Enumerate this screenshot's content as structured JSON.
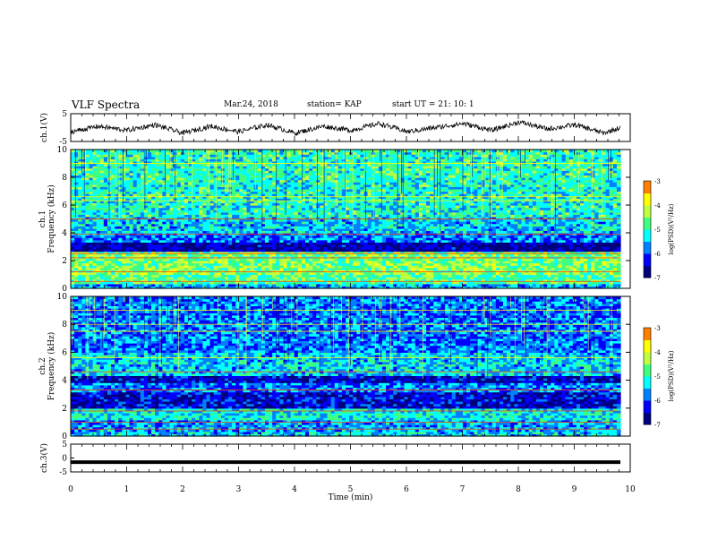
{
  "header": {
    "title": "VLF Spectra",
    "date": "Mar.24, 2018",
    "station": "station= KAP",
    "start": "start  UT  =   21: 10: 1"
  },
  "colors": {
    "colormap": [
      "#00007f",
      "#0000ff",
      "#0080ff",
      "#00ffff",
      "#40ff80",
      "#c0ff40",
      "#ffff00",
      "#ff8000",
      "#ff0000",
      "#ffffff"
    ],
    "trace": "#000000"
  },
  "chart_data": [
    {
      "type": "line",
      "ylabel": "ch.1(V)",
      "ylim": [
        -5,
        5
      ],
      "yticks": [
        "5",
        "-5"
      ],
      "xlim": [
        0,
        9.8
      ],
      "description_values": {
        "x": [
          0,
          0.5,
          1,
          1.5,
          2,
          2.5,
          3,
          3.5,
          4,
          4.5,
          5,
          5.5,
          6,
          6.5,
          7,
          7.5,
          8,
          8.5,
          9,
          9.5,
          9.8
        ],
        "y": [
          -1.5,
          0.5,
          -1,
          1,
          -2,
          0.5,
          -1.5,
          1,
          -2,
          0.5,
          -1,
          1.5,
          -1.5,
          0,
          1.5,
          -1,
          2,
          -0.5,
          1,
          -2,
          0
        ]
      }
    },
    {
      "type": "heatmap",
      "ylabel": "ch.1",
      "ylabel2": "Frequency (kHz)",
      "ylim": [
        0,
        10
      ],
      "yticks": [
        "0",
        "2",
        "4",
        "6",
        "8",
        "10"
      ],
      "xlim": [
        0,
        10
      ],
      "colorbar": {
        "label": "log(PSD)(V²/Hz)",
        "ticks": [
          "-3",
          "-4",
          "-5",
          "-6",
          "-7"
        ],
        "range": [
          -7,
          -3
        ]
      },
      "bands_khz": [
        {
          "f0": 0,
          "f1": 0.3,
          "level": 0.35
        },
        {
          "f0": 0.3,
          "f1": 1.0,
          "level": 0.55
        },
        {
          "f0": 1.0,
          "f1": 2.0,
          "level": 0.62
        },
        {
          "f0": 2.0,
          "f1": 2.6,
          "level": 0.6
        },
        {
          "f0": 2.6,
          "f1": 3.4,
          "level": 0.08
        },
        {
          "f0": 3.4,
          "f1": 4.0,
          "level": 0.3
        },
        {
          "f0": 4.0,
          "f1": 5.2,
          "level": 0.4
        },
        {
          "f0": 5.2,
          "f1": 7.5,
          "level": 0.48
        },
        {
          "f0": 7.5,
          "f1": 10,
          "level": 0.5
        }
      ],
      "lines_khz": [
        0.5,
        1.2,
        2.2,
        2.5,
        3.9,
        5.0,
        6.3,
        6.6,
        9.0
      ]
    },
    {
      "type": "heatmap",
      "ylabel": "ch.2",
      "ylabel2": "Frequency (kHz)",
      "ylim": [
        0,
        10
      ],
      "yticks": [
        "0",
        "2",
        "4",
        "6",
        "8",
        "10"
      ],
      "xlim": [
        0,
        10
      ],
      "colorbar": {
        "label": "log(PSD)(V²/Hz)",
        "ticks": [
          "-3",
          "-4",
          "-5",
          "-6",
          "-7"
        ],
        "range": [
          -7,
          -3
        ]
      },
      "bands_khz": [
        {
          "f0": 0,
          "f1": 0.4,
          "level": 0.4
        },
        {
          "f0": 0.4,
          "f1": 1.2,
          "level": 0.35
        },
        {
          "f0": 1.2,
          "f1": 2.0,
          "level": 0.45
        },
        {
          "f0": 2.0,
          "f1": 3.2,
          "level": 0.15
        },
        {
          "f0": 3.2,
          "f1": 3.8,
          "level": 0.3
        },
        {
          "f0": 3.8,
          "f1": 4.4,
          "level": 0.12
        },
        {
          "f0": 4.4,
          "f1": 6.0,
          "level": 0.4
        },
        {
          "f0": 6.0,
          "f1": 10,
          "level": 0.3
        }
      ],
      "lines_khz": [
        0.5,
        1.0,
        1.8,
        3.3,
        4.6,
        5.6,
        7.5,
        8.0,
        9.0
      ]
    },
    {
      "type": "line",
      "ylabel": "ch.3(V)",
      "ylim": [
        -5,
        5
      ],
      "yticks": [
        "5",
        "0",
        "-5"
      ],
      "xlim": [
        0,
        9.8
      ],
      "values_const": -1.5
    }
  ],
  "xaxis": {
    "label": "Time (min)",
    "ticks": [
      "0",
      "1",
      "2",
      "3",
      "4",
      "5",
      "6",
      "7",
      "8",
      "9",
      "10"
    ],
    "range": [
      0,
      10
    ]
  }
}
